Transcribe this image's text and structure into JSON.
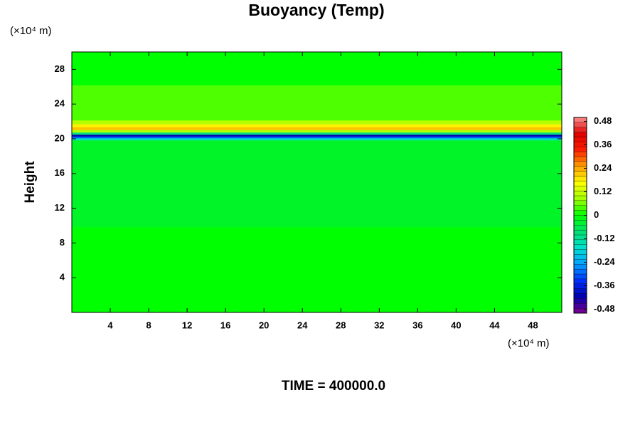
{
  "chart_data": {
    "type": "contour",
    "title": "Buoyancy (Temp)",
    "y_unit": "(×10⁴ m)",
    "x_unit": "(×10⁴ m)",
    "ylabel": "Height",
    "footer": "TIME = 400000.0",
    "xlim": [
      0,
      51
    ],
    "ylim": [
      0,
      30
    ],
    "xticks": [
      4,
      8,
      12,
      16,
      20,
      24,
      28,
      32,
      36,
      40,
      44,
      48
    ],
    "yticks": [
      4,
      8,
      12,
      16,
      20,
      24,
      28
    ],
    "clim": [
      -0.5,
      0.5
    ],
    "cticks": [
      -0.48,
      -0.36,
      -0.24,
      -0.12,
      0,
      0.12,
      0.24,
      0.36,
      0.48
    ],
    "colorscale": [
      "#800090",
      "#0000b0",
      "#0030ff",
      "#00a0ff",
      "#00e0d0",
      "#00e070",
      "#00ff00",
      "#a0ff00",
      "#ffff00",
      "#ffa000",
      "#ff2000",
      "#e00000",
      "#ff9090"
    ],
    "profile": {
      "y": [
        0,
        19.7,
        20.0,
        20.2,
        20.4,
        20.6,
        20.9,
        21.2,
        21.5,
        21.9,
        22.4,
        30
      ],
      "values": [
        0,
        -0.03,
        -0.15,
        -0.3,
        -0.42,
        -0.1,
        0.1,
        0.22,
        0.18,
        0.1,
        0.04,
        0
      ]
    }
  }
}
